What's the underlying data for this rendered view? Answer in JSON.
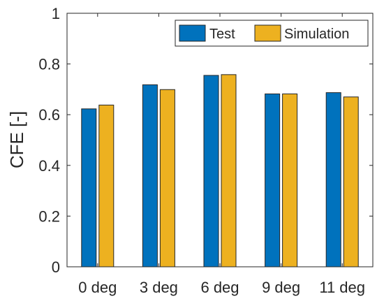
{
  "chart_data": {
    "type": "bar",
    "title": "",
    "xlabel": "",
    "ylabel": "CFE [-]",
    "ylim": [
      0,
      1
    ],
    "yticks": [
      "0",
      "0.2",
      "0.4",
      "0.6",
      "0.8",
      "1"
    ],
    "yticks_values": [
      0,
      0.2,
      0.4,
      0.6,
      0.8,
      1
    ],
    "categories": [
      "0 deg",
      "3 deg",
      "6 deg",
      "9 deg",
      "11 deg"
    ],
    "series": [
      {
        "name": "Test",
        "color": "#0072BD",
        "values": [
          0.623,
          0.718,
          0.755,
          0.682,
          0.687
        ]
      },
      {
        "name": "Simulation",
        "color": "#EDB120",
        "values": [
          0.638,
          0.699,
          0.758,
          0.682,
          0.67
        ]
      }
    ],
    "grid": false,
    "legend": "top-right"
  }
}
